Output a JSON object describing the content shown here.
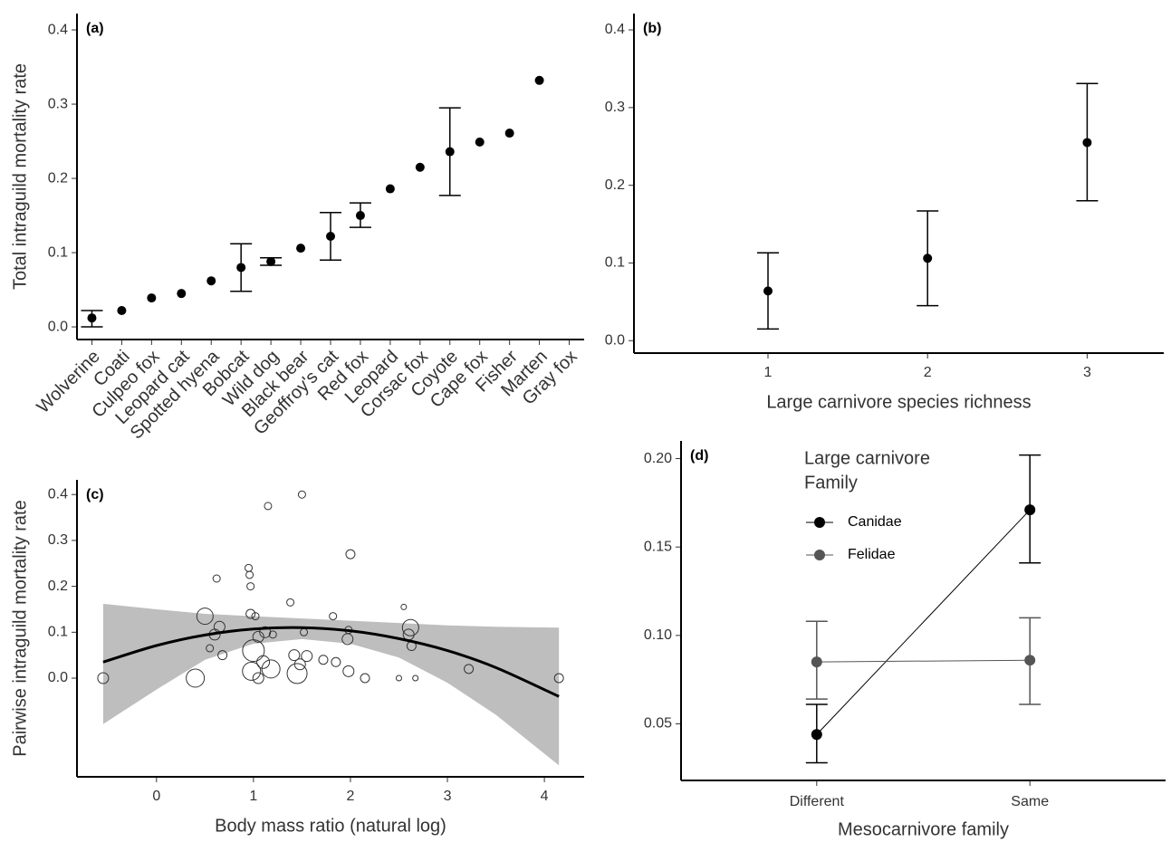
{
  "chart_data": [
    {
      "type": "errorbar",
      "tag": "(a)",
      "ylabel": "Total intraguild mortality rate",
      "categories": [
        "Wolverine",
        "Coati",
        "Culpeo fox",
        "Leopard cat",
        "Spotted hyena",
        "Bobcat",
        "Wild dog",
        "Black bear",
        "Geoffroy's cat",
        "Red fox",
        "Leopard",
        "Corsac fox",
        "Coyote",
        "Cape fox",
        "Fisher",
        "Marten",
        "Gray fox"
      ],
      "values": [
        0.012,
        0.022,
        0.039,
        0.045,
        0.062,
        0.08,
        0.088,
        0.106,
        0.122,
        0.15,
        0.186,
        0.215,
        0.236,
        0.249,
        0.261,
        0.332,
        null
      ],
      "lower": [
        0.0,
        null,
        null,
        null,
        null,
        0.048,
        0.083,
        null,
        0.09,
        0.134,
        null,
        null,
        0.177,
        null,
        null,
        null,
        null
      ],
      "upper": [
        0.022,
        null,
        null,
        null,
        null,
        0.112,
        0.093,
        null,
        0.154,
        0.167,
        null,
        null,
        0.295,
        null,
        null,
        null,
        null
      ],
      "color": "#000000",
      "ylim": [
        -0.017,
        0.422
      ],
      "yticks": [
        {
          "value": 0,
          "label": "0.0"
        },
        0.1,
        0.2,
        0.3,
        0.4
      ]
    },
    {
      "type": "errorbar",
      "tag": "(b)",
      "xlabel": "Large carnivore species richness",
      "x": [
        1,
        2,
        3
      ],
      "values": [
        0.064,
        0.106,
        0.255
      ],
      "lower": [
        0.015,
        0.045,
        0.18
      ],
      "upper": [
        0.113,
        0.167,
        0.331
      ],
      "color": "#000000",
      "xlim": [
        0.16,
        3.48
      ],
      "xticks": [
        1,
        2,
        3
      ],
      "ylim": [
        -0.016,
        0.421
      ],
      "yticks": [
        {
          "value": 0,
          "label": "0.0"
        },
        0.1,
        0.2,
        0.3,
        0.4
      ]
    },
    {
      "type": "scatter",
      "tag": "(c)",
      "ylabel": "Pairwise intraguild mortality rate",
      "xlabel": "Body mass ratio (natural log)",
      "x": [
        -0.55,
        0.4,
        0.5,
        0.55,
        0.6,
        0.62,
        0.65,
        0.68,
        0.95,
        0.96,
        0.97,
        0.97,
        1.0,
        0.98,
        1.02,
        1.05,
        1.05,
        1.1,
        1.12,
        1.15,
        1.18,
        1.2,
        1.38,
        1.42,
        1.45,
        1.48,
        1.5,
        1.52,
        1.55,
        1.72,
        1.82,
        1.85,
        1.97,
        1.98,
        1.98,
        2.0,
        2.15,
        2.5,
        2.55,
        2.6,
        2.62,
        2.63,
        2.67,
        3.22,
        4.15
      ],
      "values": [
        0.0,
        0.0,
        0.135,
        0.065,
        0.095,
        0.217,
        0.112,
        0.05,
        0.24,
        0.225,
        0.14,
        0.2,
        0.06,
        0.015,
        0.135,
        0.0,
        0.09,
        0.035,
        0.1,
        0.375,
        0.02,
        0.095,
        0.165,
        0.05,
        0.01,
        0.03,
        0.4,
        0.1,
        0.048,
        0.04,
        0.135,
        0.035,
        0.085,
        0.105,
        0.015,
        0.27,
        0.0,
        0.0,
        0.155,
        0.095,
        0.11,
        0.07,
        0.0,
        0.02,
        0.0
      ],
      "sizes": [
        6,
        10,
        9,
        4,
        6,
        4,
        6,
        5,
        4,
        4,
        5,
        4,
        12,
        10,
        4,
        6,
        6,
        7,
        6,
        4,
        10,
        4,
        4,
        6,
        11,
        6,
        4,
        4,
        6,
        5,
        4,
        5,
        6,
        4,
        6,
        5,
        5,
        3,
        3,
        6,
        9,
        5,
        3,
        5,
        5
      ],
      "fit_x": [
        -0.55,
        0,
        0.5,
        1,
        1.5,
        2,
        2.5,
        3,
        3.5,
        4.15
      ],
      "fit": [
        0.035,
        0.071,
        0.094,
        0.107,
        0.11,
        0.103,
        0.086,
        0.06,
        0.023,
        -0.04
      ],
      "fit_lower": [
        -0.1,
        -0.025,
        0.04,
        0.075,
        0.085,
        0.075,
        0.045,
        -0.01,
        -0.08,
        -0.19
      ],
      "fit_upper": [
        0.162,
        0.15,
        0.14,
        0.135,
        0.13,
        0.125,
        0.12,
        0.115,
        0.112,
        0.11
      ],
      "color": "#333333",
      "band_color": "#bebebe",
      "xlim": [
        -0.82,
        4.41
      ],
      "xticks": [
        0,
        1,
        2,
        3,
        4
      ],
      "ylim": [
        -0.215,
        0.432
      ],
      "yticks": [
        {
          "value": 0,
          "label": "0.0"
        },
        0.1,
        0.2,
        0.3,
        0.4
      ]
    },
    {
      "type": "line",
      "tag": "(d)",
      "xlabel": "Mesocarnivore  family",
      "categories": [
        "Different",
        "Same"
      ],
      "legend_title": [
        "Large carnivore",
        "Family"
      ],
      "legend": "top-left",
      "series": [
        {
          "name": "Canidae",
          "color": "#000000",
          "values": [
            0.044,
            0.171
          ],
          "lower": [
            0.028,
            0.141
          ],
          "upper": [
            0.061,
            0.202
          ]
        },
        {
          "name": "Felidae",
          "color": "#555555",
          "values": [
            0.085,
            0.086
          ],
          "lower": [
            0.064,
            0.061
          ],
          "upper": [
            0.108,
            0.11
          ]
        }
      ],
      "ylim": [
        0.018,
        0.21
      ],
      "yticks": [
        0.05,
        {
          "value": 0.1,
          "label": "0.10"
        },
        0.15,
        {
          "value": 0.2,
          "label": "0.20"
        }
      ]
    }
  ]
}
